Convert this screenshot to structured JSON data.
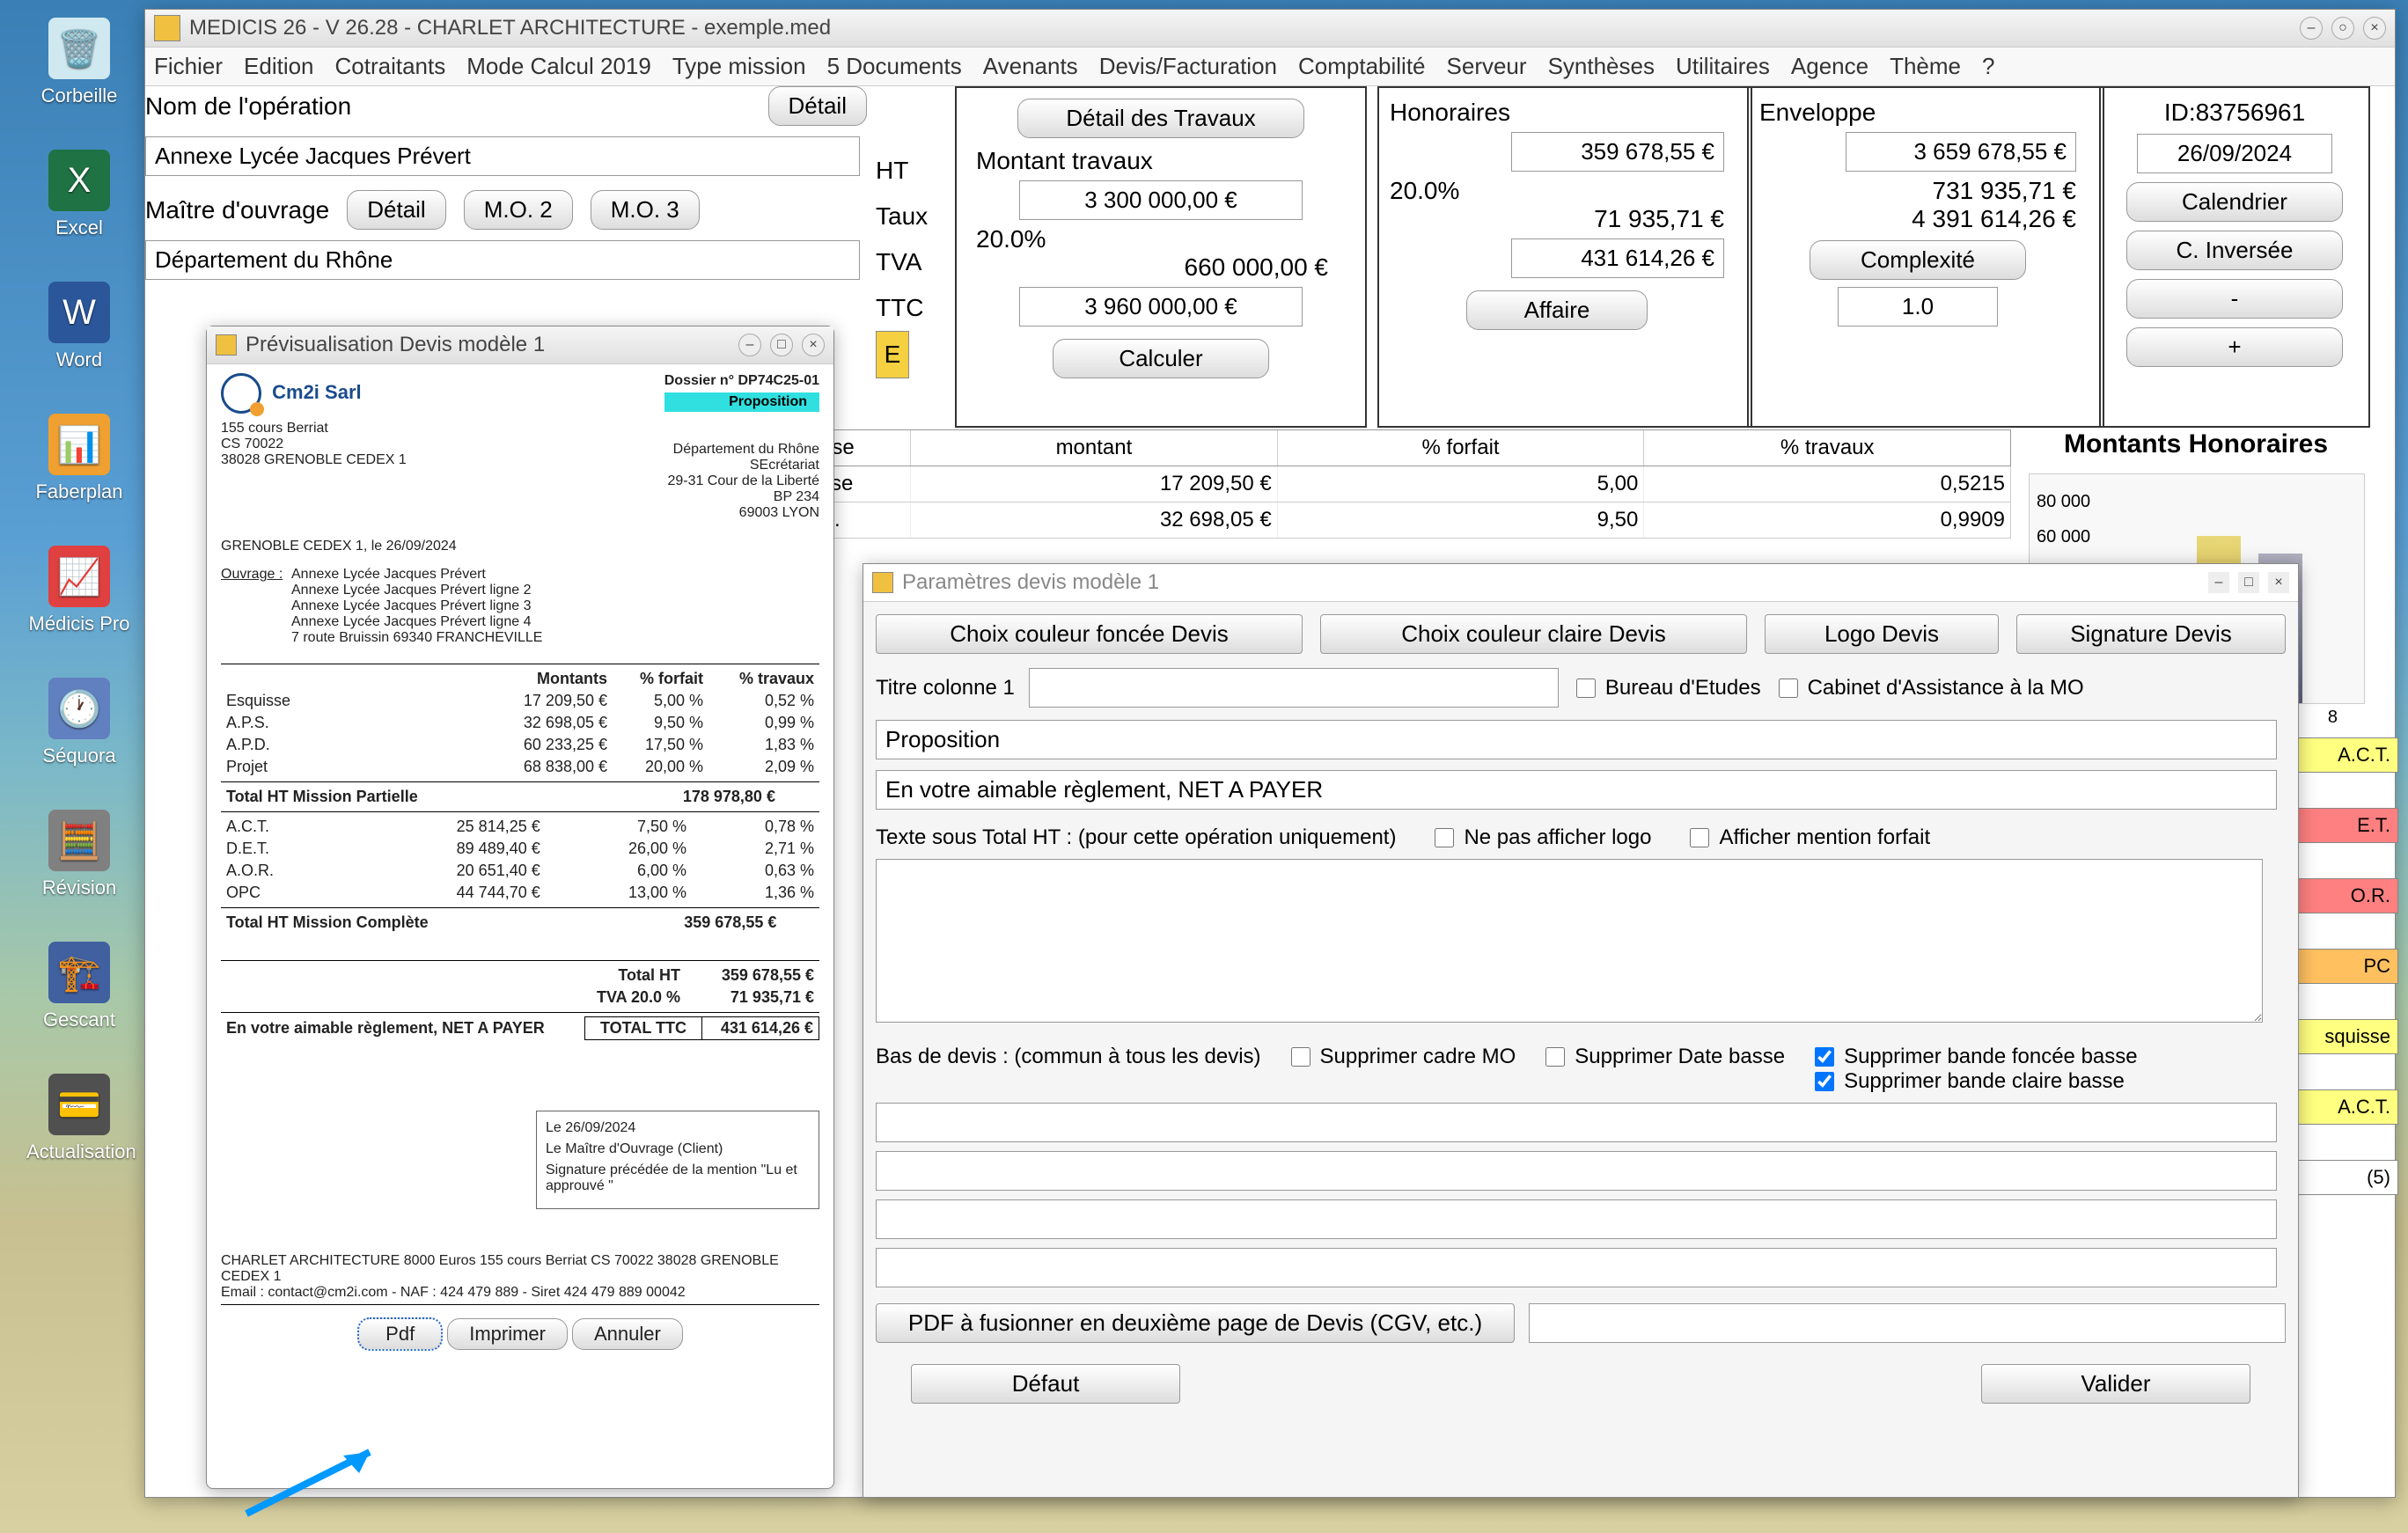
{
  "desktop": {
    "icons": [
      {
        "label": "Corbeille",
        "bg": "#d0e8f0",
        "glyph": "🗑️"
      },
      {
        "label": "Excel",
        "bg": "#1f7244",
        "glyph": "X"
      },
      {
        "label": "Word",
        "bg": "#2b579a",
        "glyph": "W"
      },
      {
        "label": "Faberplan",
        "bg": "#f0a030",
        "glyph": "📊"
      },
      {
        "label": "Médicis Pro",
        "bg": "#e04040",
        "glyph": "📈"
      },
      {
        "label": "Séquora",
        "bg": "#6080c0",
        "glyph": "🕐"
      },
      {
        "label": "Révision",
        "bg": "#808080",
        "glyph": "🧮"
      },
      {
        "label": "Gescant",
        "bg": "#4060a0",
        "glyph": "🏗️"
      },
      {
        "label": "Actualisation",
        "bg": "#505050",
        "glyph": "💳"
      }
    ]
  },
  "main": {
    "title": "MEDICIS 26  - V 26.28 - CHARLET ARCHITECTURE - exemple.med",
    "menu": [
      "Fichier",
      "Edition",
      "Cotraitants",
      "Mode Calcul 2019",
      "Type mission",
      "5 Documents",
      "Avenants",
      "Devis/Facturation",
      "Comptabilité",
      "Serveur",
      "Synthèses",
      "Utilitaires",
      "Agence",
      "Thème",
      "?"
    ],
    "op_label": "Nom de l'opération",
    "detail": "Détail",
    "op_value": "Annexe Lycée Jacques Prévert",
    "mo_label": "Maître d'ouvrage",
    "mo2": "M.O. 2",
    "mo3": "M.O. 3",
    "mo_value": "Département du Rhône",
    "ht": "HT",
    "taux": "Taux",
    "tva": "TVA",
    "ttc": "TTC",
    "e": "E",
    "travaux": {
      "title": "Détail des Travaux",
      "mt": "Montant travaux",
      "v1": "3 300 000,00 €",
      "v2": "20.0%",
      "v3": "660 000,00 €",
      "v4": "3 960 000,00 €",
      "calc": "Calculer"
    },
    "hono": {
      "title": "Honoraires",
      "v1": "359 678,55 €",
      "v2": "20.0%",
      "v3": "71 935,71 €",
      "v4": "431 614,26 €",
      "aff": "Affaire"
    },
    "env": {
      "title": "Enveloppe",
      "v1": "3 659 678,55 €",
      "v2": "731 935,71 €",
      "v3": "4 391 614,26 €",
      "comp": "Complexité",
      "v4": "1.0"
    },
    "side": {
      "id": "ID:83756961",
      "date": "26/09/2024",
      "cal": "Calendrier",
      "cinv": "C. Inversée",
      "minus": "-",
      "plus": "+"
    },
    "grid": {
      "h1": "ase",
      "h2": "montant",
      "h3": "% forfait",
      "h4": "% travaux",
      "rows": [
        [
          "sse",
          "17 209,50 €",
          "5,00",
          "0,5215"
        ],
        [
          "S.",
          "32 698,05 €",
          "9,50",
          "0,9909"
        ]
      ]
    },
    "chart_title": "Montants Honoraires",
    "chart_y": [
      "80 000",
      "60 000"
    ],
    "chart_x": "8",
    "tags": [
      "A.C.T.",
      "E.T.",
      "O.R.",
      "PC",
      "squisse",
      "A.C.T.",
      "(5)"
    ]
  },
  "preview": {
    "title": "Prévisualisation Devis modèle 1",
    "company": "Cm2i Sarl",
    "dossier": "Dossier n° DP74C25-01",
    "prop": "Proposition",
    "addr1": "155 cours Berriat",
    "addr2": "CS 70022",
    "addr3": "38028 GRENOBLE CEDEX 1",
    "dest": [
      "Département du Rhône",
      "SEcrétariat",
      "29-31 Cour de la Liberté",
      "BP 234",
      "69003 LYON"
    ],
    "dateline": "GRENOBLE CEDEX 1, le 26/09/2024",
    "ouvrage": "Ouvrage :",
    "lines": [
      "Annexe Lycée Jacques Prévert",
      "Annexe Lycée Jacques Prévert ligne 2",
      "Annexe Lycée Jacques Prévert ligne 3",
      "Annexe Lycée Jacques Prévert ligne 4",
      "7 route Bruissin 69340 FRANCHEVILLE"
    ],
    "th": [
      "Montants",
      "% forfait",
      "% travaux"
    ],
    "rows": [
      [
        "Esquisse",
        "17 209,50 €",
        "5,00 %",
        "0,52 %"
      ],
      [
        "A.P.S.",
        "32 698,05 €",
        "9,50 %",
        "0,99 %"
      ],
      [
        "A.P.D.",
        "60 233,25 €",
        "17,50 %",
        "1,83 %"
      ],
      [
        "Projet",
        "68 838,00 €",
        "20,00 %",
        "2,09 %"
      ]
    ],
    "sub1": [
      "Total HT Mission Partielle",
      "178 978,80 €"
    ],
    "rows2": [
      [
        "A.C.T.",
        "25 814,25 €",
        "7,50 %",
        "0,78 %"
      ],
      [
        "D.E.T.",
        "89 489,40 €",
        "26,00 %",
        "2,71 %"
      ],
      [
        "A.O.R.",
        "20 651,40 €",
        "6,00 %",
        "0,63 %"
      ],
      [
        "OPC",
        "44 744,70 €",
        "13,00 %",
        "1,36 %"
      ]
    ],
    "sub2": [
      "Total HT Mission Complète",
      "359 678,55 €"
    ],
    "tot": [
      [
        "Total HT",
        "359 678,55 €"
      ],
      [
        "TVA 20.0 %",
        "71 935,71 €"
      ]
    ],
    "pay": "En votre aimable règlement, NET A PAYER",
    "totttc": "TOTAL TTC",
    "totv": "431 614,26 €",
    "sig": [
      "Le 26/09/2024",
      "Le Maître d'Ouvrage (Client)",
      "Signature précédée de la mention \"Lu et approuvé \""
    ],
    "foot": "CHARLET ARCHITECTURE 8000 Euros 155 cours Berriat CS 70022 38028 GRENOBLE CEDEX 1",
    "foot2": "Email : contact@cm2i.com  - NAF :  424 479 889 - Siret 424 479 889 00042",
    "pdf": "Pdf",
    "imp": "Imprimer",
    "ann": "Annuler"
  },
  "param": {
    "title": "Paramètres devis modèle 1",
    "b1": "Choix couleur foncée Devis",
    "b2": "Choix couleur claire Devis",
    "b3": "Logo Devis",
    "b4": "Signature Devis",
    "tc": "Titre colonne 1",
    "be": "Bureau d'Etudes",
    "cab": "Cabinet d'Assistance à la MO",
    "v1": "Proposition",
    "v2": "En votre aimable règlement, NET A PAYER",
    "t3": "Texte sous Total HT  : (pour cette opération uniquement)",
    "nologo": "Ne pas afficher logo",
    "forfait": "Afficher mention forfait",
    "bas": "Bas de devis : (commun à tous les devis)",
    "supmo": "Supprimer cadre MO",
    "supdate": "Supprimer Date basse",
    "supbf": "Supprimer bande foncée basse",
    "supbc": "Supprimer bande claire basse",
    "pdf": "PDF à fusionner en deuxième page de Devis (CGV, etc.)",
    "def": "Défaut",
    "val": "Valider"
  }
}
